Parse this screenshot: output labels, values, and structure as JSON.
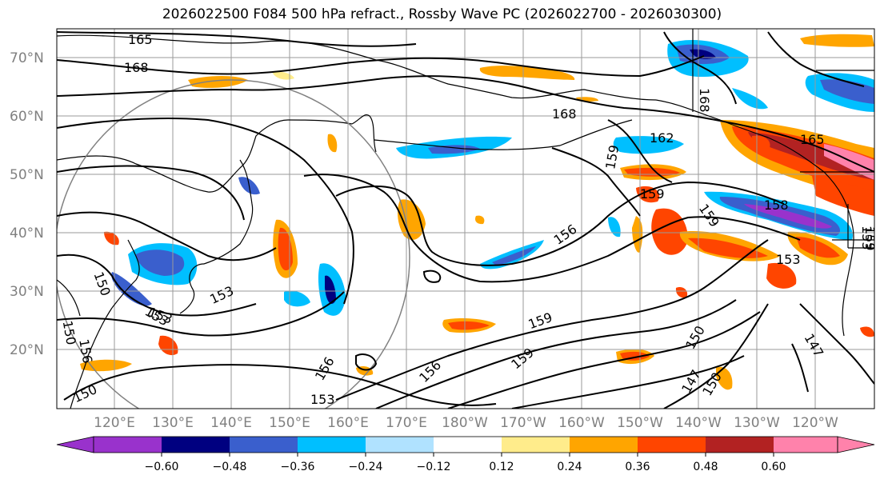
{
  "title": "2026022500 F084 500 hPa refract., Rossby Wave PC (2026022700 - 2026030300)",
  "map": {
    "lat_labels": [
      "70°N",
      "60°N",
      "50°N",
      "40°N",
      "30°N",
      "20°N"
    ],
    "lat_values": [
      70,
      60,
      50,
      40,
      30,
      20
    ],
    "lon_labels": [
      "120°E",
      "130°E",
      "140°E",
      "150°E",
      "160°E",
      "170°E",
      "180°W",
      "170°W",
      "160°W",
      "150°W",
      "140°W",
      "130°W",
      "120°W"
    ],
    "lon_values": [
      120,
      130,
      140,
      150,
      160,
      170,
      180,
      190,
      200,
      210,
      220,
      230,
      240
    ],
    "contour_labels": [
      "165",
      "168",
      "168",
      "168",
      "162",
      "165",
      "159",
      "159",
      "156",
      "159",
      "158",
      "159",
      "153",
      "153",
      "153",
      "150",
      "150",
      "153",
      "156",
      "159",
      "150",
      "147",
      "150",
      "147",
      "153",
      "150",
      "156",
      "159",
      "156",
      "153"
    ]
  },
  "colorbar": {
    "ticks": [
      "−0.60",
      "−0.48",
      "−0.36",
      "−0.24",
      "−0.12",
      "0.12",
      "0.24",
      "0.36",
      "0.48",
      "0.60"
    ],
    "tick_values": [
      -0.6,
      -0.48,
      -0.36,
      -0.24,
      -0.12,
      0.12,
      0.24,
      0.36,
      0.48,
      0.6
    ],
    "colors": [
      "#9932cc",
      "#000080",
      "#3a5fcd",
      "#00bfff",
      "#b0e2ff",
      "#ffffff",
      "#ffec8b",
      "#ffa500",
      "#ff4500",
      "#b22222",
      "#ff82ab"
    ]
  }
}
